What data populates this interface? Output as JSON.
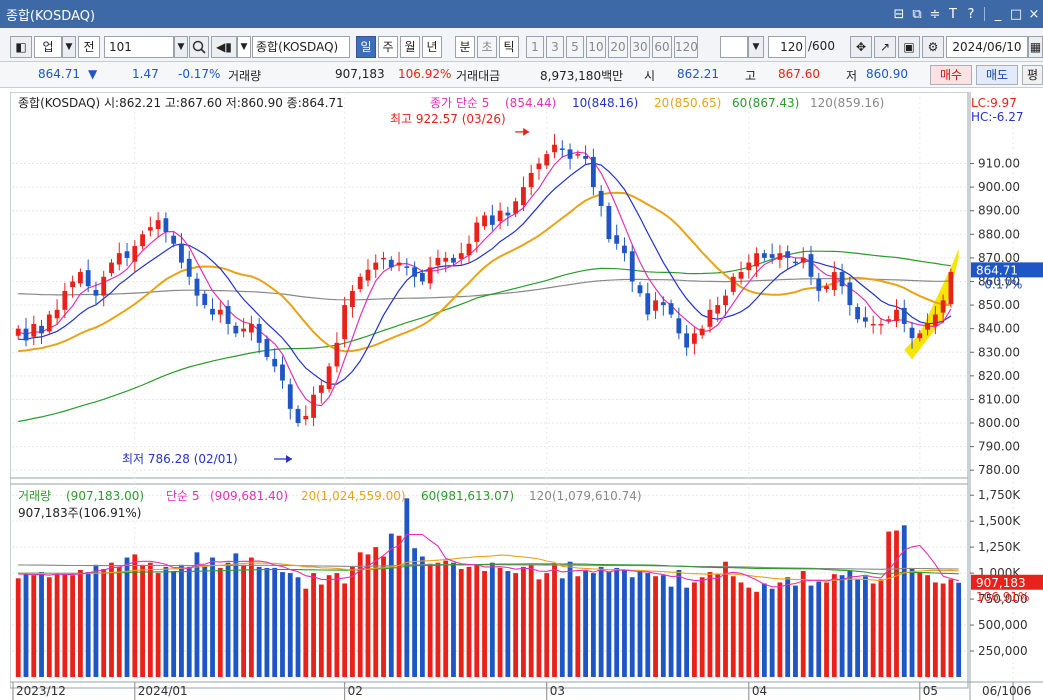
{
  "window": {
    "title": "종합(KOSDAQ)",
    "buttons": [
      "⊟",
      "⧉",
      "≑",
      "T",
      "?",
      "_",
      "□",
      "×"
    ]
  },
  "toolbar": {
    "market_type": "업",
    "jeon_label": "전",
    "code": "101",
    "search_icon": "search-icon",
    "name": "종합(KOSDAQ)",
    "periods": [
      "일",
      "주",
      "월",
      "년",
      "분",
      "초",
      "틱"
    ],
    "active_period": "일",
    "intervals": [
      "1",
      "3",
      "5",
      "10",
      "20",
      "30",
      "60",
      "120"
    ],
    "count": "120",
    "count_max": "/600",
    "date": "2024/06/10"
  },
  "quote": {
    "price": "864.71",
    "direction": "▼",
    "change": "1.47",
    "change_pct": "-0.17%",
    "volume_label": "거래량",
    "volume": "907,183",
    "volume_ratio": "106.92%",
    "amount_label": "거래대금",
    "amount": "8,973,180백만",
    "open_label": "시",
    "open": "862.21",
    "high_label": "고",
    "high": "867.60",
    "low_label": "저",
    "low": "860.90",
    "buy_label": "매수",
    "sell_label": "매도",
    "extra_label": "평"
  },
  "colors": {
    "up": "#e8211b",
    "down": "#1f56c6",
    "ma5": "#e332b8",
    "ma10": "#2233cc",
    "ma20": "#e8a416",
    "ma60": "#2c9b2c",
    "ma120": "#888888",
    "highlight": "#f5e400"
  },
  "chart_data": [
    {
      "type": "candlestick",
      "legend": "종합(KOSDAQ) 시:862.21 고:867.60 저:860.90 종:864.71",
      "ma_legend": [
        {
          "name": "종가 단순 5",
          "value": "(854.44)",
          "color": "#e332b8"
        },
        {
          "name": "10",
          "value": "(848.16)",
          "color": "#2233cc"
        },
        {
          "name": "20",
          "value": "(850.65)",
          "color": "#e8a416"
        },
        {
          "name": "60",
          "value": "(867.43)",
          "color": "#2c9b2c"
        },
        {
          "name": "120",
          "value": "(859.16)",
          "color": "#888888"
        }
      ],
      "high_annotation": "최고 922.57 (03/26)",
      "low_annotation": "최저 786.28 (02/01)",
      "lc_label": "LC:9.97",
      "hc_label": "HC:-6.27",
      "current_price_label": "864.71",
      "current_change_label": "-0.17%",
      "ylim": [
        775,
        931
      ],
      "y_ticks": [
        "910.00",
        "900.00",
        "890.00",
        "880.00",
        "870.00",
        "860.00",
        "850.00",
        "840.00",
        "830.00",
        "820.00",
        "810.00",
        "800.00",
        "790.00",
        "780.00"
      ],
      "y_tick_values": [
        910,
        900,
        890,
        880,
        870,
        860,
        850,
        840,
        830,
        820,
        810,
        800,
        790,
        780
      ],
      "closes": [
        840,
        835,
        842,
        838,
        846,
        848,
        856,
        860,
        864,
        858,
        854,
        862,
        868,
        872,
        870,
        875,
        880,
        883,
        886,
        881,
        876,
        868,
        862,
        854,
        850,
        846,
        848,
        842,
        838,
        840,
        842,
        834,
        828,
        824,
        818,
        806,
        800,
        803,
        812,
        816,
        824,
        834,
        850,
        856,
        862,
        865,
        868,
        870,
        866,
        868,
        866,
        862,
        860,
        866,
        870,
        870,
        868,
        872,
        876,
        885,
        888,
        884,
        890,
        888,
        894,
        900,
        906,
        910,
        914,
        918,
        916,
        912,
        914,
        912,
        900,
        892,
        878,
        876,
        872,
        860,
        855,
        846,
        852,
        850,
        846,
        838,
        832,
        838,
        840,
        848,
        850,
        854,
        862,
        864,
        868,
        872,
        870,
        870,
        872,
        870,
        868,
        870,
        862,
        856,
        858,
        864,
        858,
        850,
        844,
        843,
        842,
        842,
        844,
        848,
        842,
        836,
        838,
        842,
        846,
        852,
        864
      ],
      "high_marker": {
        "date": "03/26",
        "value": 922.57
      },
      "low_marker": {
        "date": "02/01",
        "value": 786.28
      }
    },
    {
      "type": "bar",
      "legend": [
        {
          "name": "거래량",
          "value": "(907,183.00)",
          "color": "#2c9b2c"
        },
        {
          "name": "단순 5",
          "value": "(909,681.40)",
          "color": "#e332b8"
        },
        {
          "name": "20",
          "value": "(1,024,559.00)",
          "color": "#e8a416"
        },
        {
          "name": "60",
          "value": "(981,613.07)",
          "color": "#2c9b2c"
        },
        {
          "name": "120",
          "value": "(1,079,610.74)",
          "color": "#888888"
        }
      ],
      "sub_legend": "907,183주(106.91%)",
      "current_volume_label": "907,183",
      "current_ratio_label": "106.91%",
      "ylim": [
        0,
        1800000
      ],
      "y_ticks": [
        "1,750K",
        "1,500K",
        "1,250K",
        "1,000K",
        "750,000",
        "500,000",
        "250,000"
      ],
      "y_tick_values": [
        1750000,
        1500000,
        1250000,
        1000000,
        750000,
        500000,
        250000
      ],
      "volumes": [
        950,
        1000,
        980,
        1010,
        960,
        1000,
        990,
        980,
        1030,
        1010,
        1080,
        1040,
        1100,
        1060,
        1150,
        1180,
        1080,
        1100,
        1000,
        1060,
        1020,
        1080,
        1060,
        1200,
        1070,
        1150,
        1050,
        1100,
        1190,
        1080,
        1150,
        1060,
        1050,
        1050,
        1010,
        1000,
        960,
        850,
        1000,
        890,
        980,
        1000,
        900,
        1060,
        1200,
        1180,
        1250,
        1160,
        1380,
        1360,
        1720,
        1240,
        1160,
        1090,
        1100,
        1120,
        1100,
        1040,
        1060,
        1080,
        1020,
        1100,
        1050,
        1020,
        1000,
        1060,
        1080,
        940,
        1000,
        1090,
        950,
        1110,
        970,
        1020,
        1000,
        1060,
        1010,
        1050,
        1030,
        960,
        1020,
        1000,
        970,
        980,
        870,
        1030,
        860,
        910,
        960,
        1010,
        990,
        1110,
        970,
        910,
        860,
        820,
        900,
        850,
        910,
        960,
        880,
        1020,
        880,
        920,
        910,
        990,
        980,
        1020,
        940,
        970,
        900,
        940,
        1400,
        1410,
        1460,
        1050,
        1010,
        980,
        910,
        900,
        940,
        907
      ],
      "volume_unit": "thousands"
    }
  ],
  "x_axis": {
    "labels": [
      "2023/12",
      "2024/01",
      "02",
      "03",
      "04",
      "05",
      "06"
    ],
    "current_label": "06/10"
  }
}
